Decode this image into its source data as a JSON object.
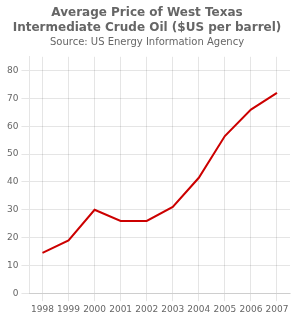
{
  "chart_data": {
    "type": "line",
    "title": "Average Price of West Texas\nIntermediate Crude Oil ($US per barrel)",
    "subtitle": "Source: US Energy Information Agency",
    "x": [
      1998,
      1999,
      2000,
      2001,
      2002,
      2003,
      2004,
      2005,
      2006,
      2007
    ],
    "values": [
      14.5,
      19.0,
      30.0,
      26.0,
      26.0,
      31.0,
      41.5,
      56.5,
      66.0,
      72.0
    ],
    "color": "#cc0000",
    "xlim": [
      1997.5,
      2007.5
    ],
    "xticks": [
      1998,
      1999,
      2000,
      2001,
      2002,
      2003,
      2004,
      2005,
      2006,
      2007
    ],
    "ylim": [
      0,
      85
    ],
    "yticks": [
      0,
      10,
      20,
      30,
      40,
      50,
      60,
      70,
      80
    ],
    "grid": true
  }
}
